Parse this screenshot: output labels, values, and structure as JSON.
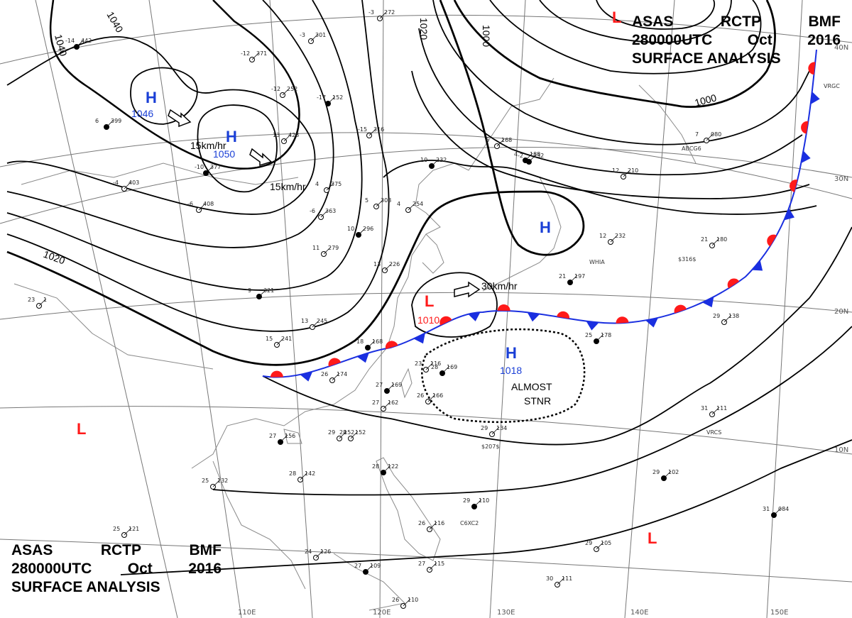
{
  "header": {
    "line1": [
      "ASAS",
      "RCTP",
      "BMF"
    ],
    "line2": [
      "280000UTC",
      "Oct",
      "2016"
    ],
    "line3": "SURFACE ANALYSIS"
  },
  "colors": {
    "high": "#1a3fd6",
    "low": "#ff1a1a",
    "isobar": "#000000",
    "warm_front": "#ff1a1a",
    "cold_front": "#1a2fe0",
    "coast": "#888888",
    "grid": "#777777"
  },
  "pressure_systems": [
    {
      "type": "H",
      "value": "1046"
    },
    {
      "type": "H",
      "value": "1050"
    },
    {
      "type": "H",
      "value": ""
    },
    {
      "type": "H",
      "value": "1018"
    },
    {
      "type": "L",
      "value": "1010"
    },
    {
      "type": "L",
      "value": ""
    },
    {
      "type": "L",
      "value": ""
    },
    {
      "type": "L",
      "value": ""
    }
  ],
  "isobar_labels": [
    "1040",
    "1040",
    "1020",
    "1000",
    "1000",
    "1020"
  ],
  "motion_labels": [
    "15km/hr",
    "15km/hr",
    "30km/hr"
  ],
  "annotation": [
    "ALMOST",
    "STNR"
  ],
  "latitude_labels": [
    "40N",
    "30N",
    "20N",
    "10N"
  ],
  "longitude_labels": [
    "110E",
    "120E",
    "130E",
    "140E",
    "150E"
  ],
  "stations": [
    [
      "-14",
      "442"
    ],
    [
      "-12",
      "371"
    ],
    [
      "-12",
      "252"
    ],
    [
      "-17",
      "152"
    ],
    [
      "-15",
      "316"
    ],
    [
      "13",
      "428"
    ],
    [
      "6",
      "399"
    ],
    [
      "-4",
      "403"
    ],
    [
      "-6",
      "408"
    ],
    [
      "-10",
      "377"
    ],
    [
      "-6",
      "363"
    ],
    [
      "4",
      "375"
    ],
    [
      "10",
      "296"
    ],
    [
      "11",
      "279"
    ],
    [
      "13",
      "226"
    ],
    [
      "9",
      "321"
    ],
    [
      "13",
      "245"
    ],
    [
      "15",
      "241"
    ],
    [
      "10",
      "232"
    ],
    [
      "4",
      "254"
    ],
    [
      "5",
      "308"
    ],
    [
      "-2",
      "232"
    ],
    [
      "-3",
      "272"
    ],
    [
      "-3",
      "301"
    ],
    [
      "18",
      "168"
    ],
    [
      "26",
      "174"
    ],
    [
      "23",
      "116"
    ],
    [
      "27",
      "169"
    ],
    [
      "27",
      "162"
    ],
    [
      "26",
      "166"
    ],
    [
      "28",
      "169"
    ],
    [
      "28",
      "152"
    ],
    [
      "29",
      "152"
    ],
    [
      "27",
      "156"
    ],
    [
      "28",
      "142"
    ],
    [
      "25",
      "132"
    ],
    [
      "28",
      "122"
    ],
    [
      "25",
      "121"
    ],
    [
      "24",
      "126"
    ],
    [
      "27",
      "109"
    ],
    [
      "26",
      "110"
    ],
    [
      "27",
      "115"
    ],
    [
      "29",
      "110"
    ],
    [
      "26",
      "116"
    ],
    [
      "29",
      "134"
    ],
    [
      "29",
      "102"
    ],
    [
      "29",
      "105"
    ],
    [
      "30",
      "111"
    ],
    [
      "31",
      "084"
    ],
    [
      "31",
      "111"
    ],
    [
      "29",
      "138"
    ],
    [
      "25",
      "178"
    ],
    [
      "21",
      "180"
    ],
    [
      "12",
      "232"
    ],
    [
      "21",
      "197"
    ],
    [
      "12",
      "210"
    ],
    [
      "7",
      "080"
    ],
    [
      "4",
      "188"
    ],
    [
      "6",
      "168"
    ],
    [
      "23",
      "1"
    ]
  ],
  "ship_ids": [
    "ABCG6",
    "WHIA",
    "VRCS",
    "VRGC",
    "C6XC2",
    "$207$",
    "$316$"
  ]
}
